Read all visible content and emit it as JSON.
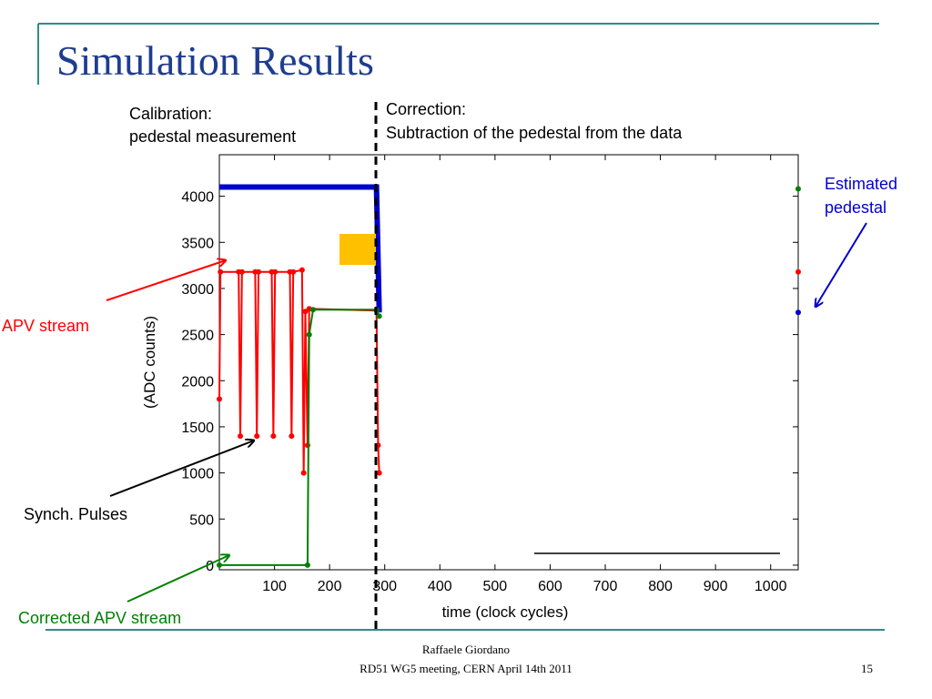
{
  "slide": {
    "title": "Simulation Results",
    "calibration_heading": "Calibration:",
    "calibration_text": "pedestal measurement",
    "correction_heading": "Correction:",
    "correction_text": "Subtraction of the pedestal from the data",
    "estimated_pedestal_line1": "Estimated",
    "estimated_pedestal_line2": "pedestal",
    "apv_stream_label": "APV stream",
    "synch_pulses_label": "Synch. Pulses",
    "corrected_apv_label": "Corrected APV stream",
    "footer_author": "Raffaele Giordano",
    "footer_meeting": "RD51 WG5 meeting, CERN April 14th 2011",
    "page_number": "15"
  },
  "colors": {
    "title": "#1f3d8f",
    "accent_line": "#2e8b8b",
    "apv_stream": "#ff0000",
    "estimated_pedestal": "#0000cc",
    "corrected_stream": "#008000",
    "marker": "#ffc000"
  },
  "chart_data": {
    "type": "line",
    "xlabel": "time (clock cycles)",
    "ylabel": "(ADC counts)",
    "xlim": [
      0,
      1050
    ],
    "ylim": [
      -50,
      4450
    ],
    "x_ticks": [
      100,
      200,
      300,
      400,
      500,
      600,
      700,
      800,
      900,
      1000
    ],
    "y_ticks": [
      0,
      500,
      1000,
      1500,
      2000,
      2500,
      3000,
      3500,
      4000
    ],
    "calibration_boundary_x": 290,
    "series": [
      {
        "name": "Estimated pedestal",
        "color": "#0000cc",
        "points": [
          [
            0,
            4100
          ],
          [
            285,
            4100
          ],
          [
            290,
            2740
          ]
        ]
      },
      {
        "name": "APV stream",
        "color": "#ff0000",
        "points": [
          [
            0,
            1800
          ],
          [
            2,
            3180
          ],
          [
            35,
            3180
          ],
          [
            38,
            1400
          ],
          [
            41,
            3180
          ],
          [
            65,
            3180
          ],
          [
            68,
            1400
          ],
          [
            71,
            3180
          ],
          [
            95,
            3180
          ],
          [
            98,
            1400
          ],
          [
            101,
            3180
          ],
          [
            128,
            3180
          ],
          [
            131,
            1400
          ],
          [
            134,
            3180
          ],
          [
            150,
            3200
          ],
          [
            153,
            1000
          ],
          [
            156,
            2750
          ],
          [
            160,
            1300
          ],
          [
            163,
            2780
          ],
          [
            285,
            2760
          ],
          [
            288,
            1300
          ],
          [
            290,
            1000
          ]
        ]
      },
      {
        "name": "Corrected APV stream",
        "color": "#008000",
        "points": [
          [
            0,
            0
          ],
          [
            160,
            0
          ],
          [
            163,
            2500
          ],
          [
            170,
            2770
          ],
          [
            285,
            2770
          ],
          [
            290,
            2700
          ]
        ]
      }
    ],
    "right_edge_markers": [
      {
        "color": "#008000",
        "y": 4080
      },
      {
        "color": "#ff0000",
        "y": 3180
      },
      {
        "color": "#0000cc",
        "y": 2740
      }
    ]
  }
}
